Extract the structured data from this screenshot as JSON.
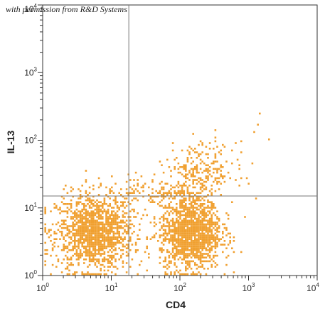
{
  "watermark": "with permission from R&D Systems",
  "chart_data": {
    "type": "scatter",
    "title": "",
    "xlabel": "CD4",
    "ylabel": "IL-13",
    "xscale": "log",
    "yscale": "log",
    "xlim": [
      1,
      10000
    ],
    "ylim": [
      1,
      10000
    ],
    "x_ticks": [
      {
        "base": "10",
        "exp": "0"
      },
      {
        "base": "10",
        "exp": "1"
      },
      {
        "base": "10",
        "exp": "2"
      },
      {
        "base": "10",
        "exp": "3"
      },
      {
        "base": "10",
        "exp": "4"
      }
    ],
    "y_ticks": [
      {
        "base": "10",
        "exp": "0"
      },
      {
        "base": "10",
        "exp": "1"
      },
      {
        "base": "10",
        "exp": "2"
      },
      {
        "base": "10",
        "exp": "3"
      },
      {
        "base": "10",
        "exp": "4"
      }
    ],
    "quadrant_gates": {
      "x": 18,
      "y": 15
    },
    "point_color": "#f0a030",
    "populations": [
      {
        "x_center": 5.5,
        "y_center": 4.5,
        "x_spread_decades": 0.28,
        "y_spread_decades": 0.28,
        "count": 1500
      },
      {
        "x_center": 140,
        "y_center": 4.5,
        "x_spread_decades": 0.22,
        "y_spread_decades": 0.28,
        "count": 1500
      },
      {
        "x_center": 200,
        "y_center": 35,
        "x_spread_decades": 0.25,
        "y_spread_decades": 0.22,
        "count": 260
      },
      {
        "x_center": 40,
        "y_center": 18,
        "x_spread_decades": 0.35,
        "y_spread_decades": 0.12,
        "count": 120
      }
    ],
    "outliers": [
      [
        1400,
        250
      ],
      [
        1200,
        140
      ],
      [
        1900,
        105
      ],
      [
        1300,
        180
      ],
      [
        700,
        40
      ]
    ]
  }
}
